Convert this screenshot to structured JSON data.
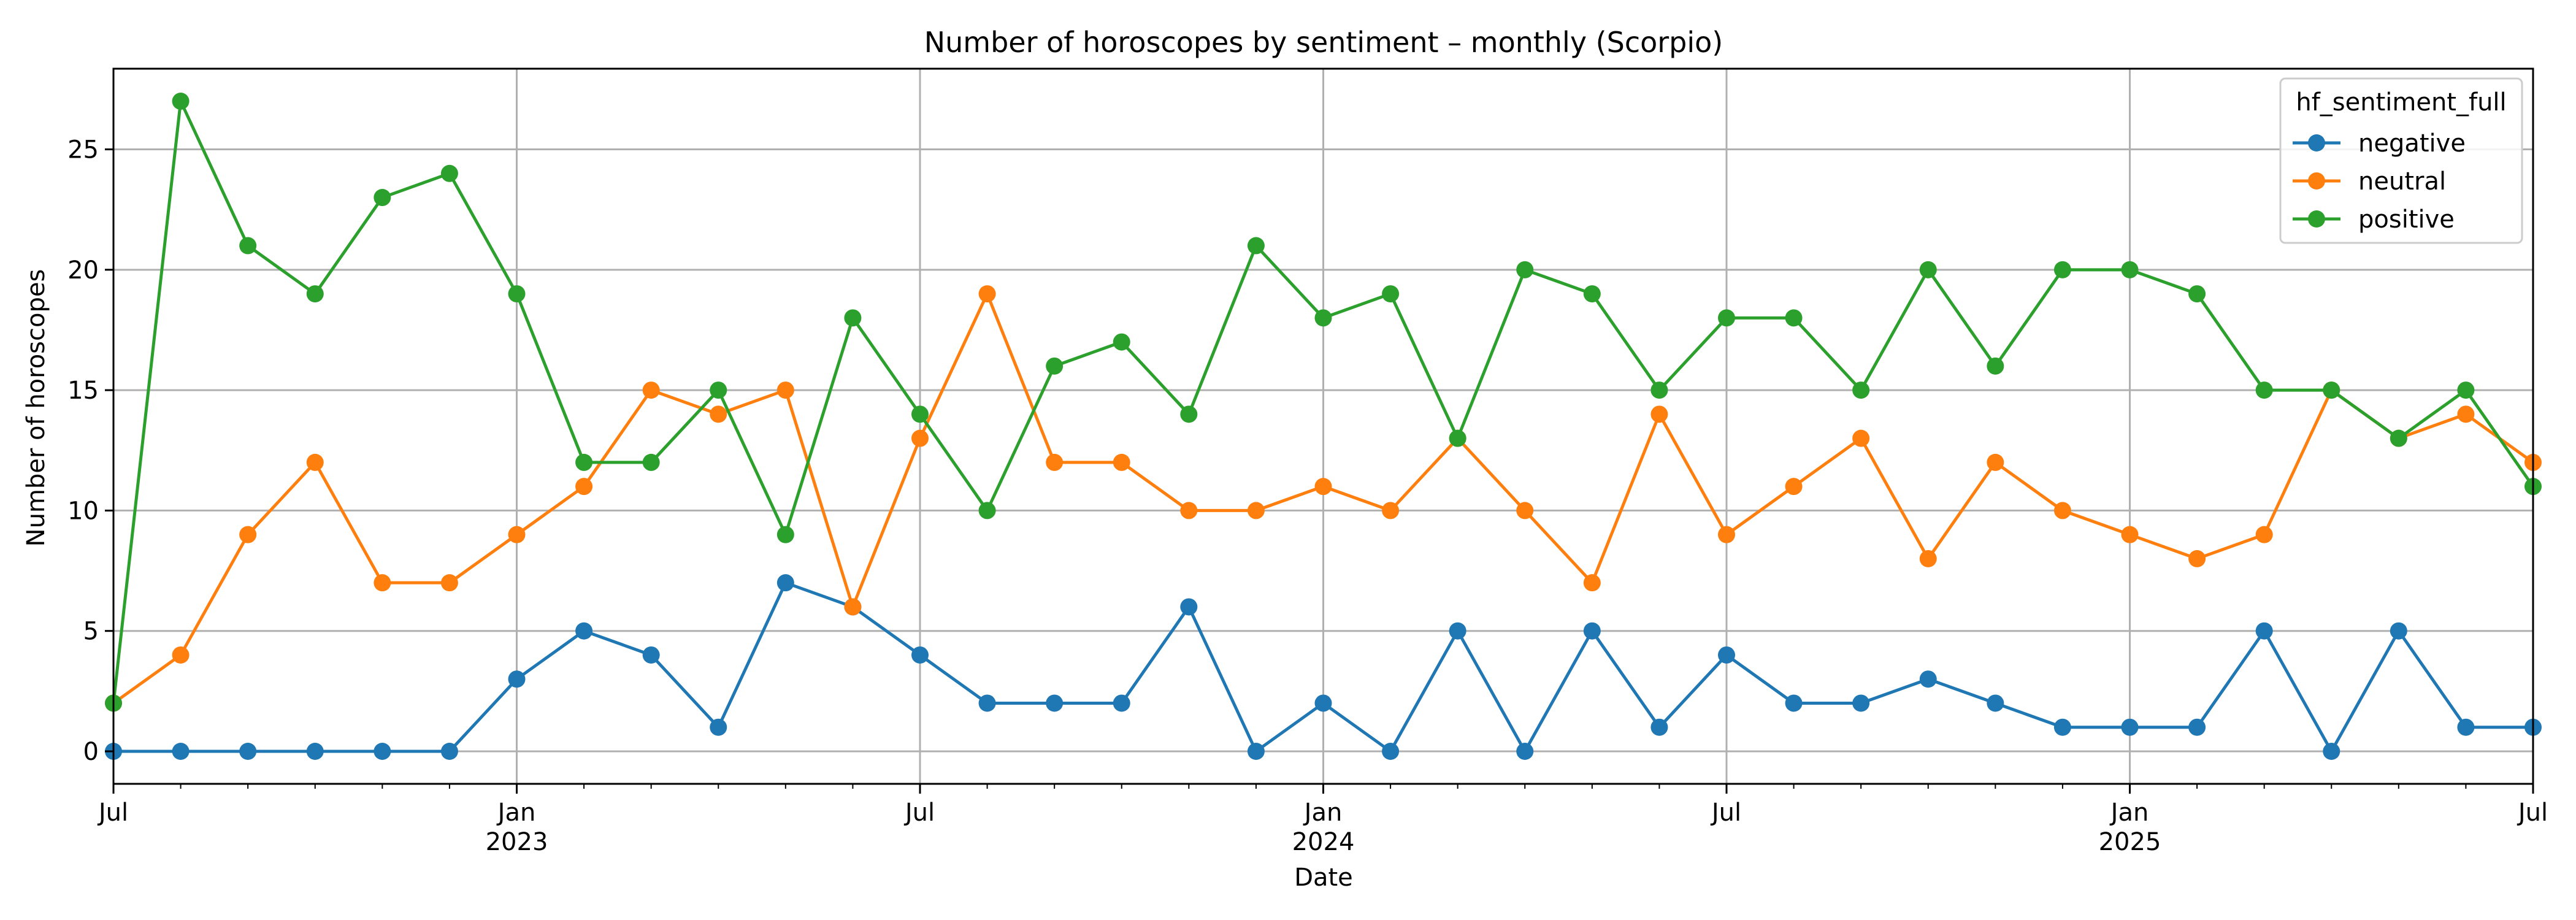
{
  "chart_data": {
    "type": "line",
    "title": "Number of horoscopes by sentiment – monthly (Scorpio)",
    "xlabel": "Date",
    "ylabel": "Number of horoscopes",
    "x": [
      "2022-07",
      "2022-08",
      "2022-09",
      "2022-10",
      "2022-11",
      "2022-12",
      "2023-01",
      "2023-02",
      "2023-03",
      "2023-04",
      "2023-05",
      "2023-06",
      "2023-07",
      "2023-08",
      "2023-09",
      "2023-10",
      "2023-11",
      "2023-12",
      "2024-01",
      "2024-02",
      "2024-03",
      "2024-04",
      "2024-05",
      "2024-06",
      "2024-07",
      "2024-08",
      "2024-09",
      "2024-10",
      "2024-11",
      "2024-12",
      "2025-01",
      "2025-02",
      "2025-03",
      "2025-04",
      "2025-05",
      "2025-06",
      "2025-07"
    ],
    "xlim": [
      "2022-07",
      "2025-07"
    ],
    "ylim": [
      -1.35,
      28.35
    ],
    "y_ticks": [
      0,
      5,
      10,
      15,
      20,
      25
    ],
    "x_ticks": [
      {
        "at": "2022-07",
        "label": "Jul",
        "year": ""
      },
      {
        "at": "2023-01",
        "label": "Jan",
        "year": "2023"
      },
      {
        "at": "2023-07",
        "label": "Jul",
        "year": ""
      },
      {
        "at": "2024-01",
        "label": "Jan",
        "year": "2024"
      },
      {
        "at": "2024-07",
        "label": "Jul",
        "year": ""
      },
      {
        "at": "2025-01",
        "label": "Jan",
        "year": "2025"
      },
      {
        "at": "2025-07",
        "label": "Jul",
        "year": ""
      }
    ],
    "grid": true,
    "legend": {
      "title": "hf_sentiment_full",
      "placement": "top-right"
    },
    "series": [
      {
        "name": "negative",
        "color": "#1f77b4",
        "values": [
          0,
          0,
          0,
          0,
          0,
          0,
          3,
          5,
          4,
          1,
          7,
          6,
          4,
          2,
          2,
          2,
          6,
          0,
          2,
          0,
          5,
          0,
          5,
          1,
          4,
          2,
          2,
          3,
          2,
          1,
          1,
          1,
          5,
          0,
          5,
          1,
          1
        ]
      },
      {
        "name": "neutral",
        "color": "#ff7f0e",
        "values": [
          2,
          4,
          9,
          12,
          7,
          7,
          9,
          11,
          15,
          14,
          15,
          6,
          13,
          19,
          12,
          12,
          10,
          10,
          11,
          10,
          13,
          10,
          7,
          14,
          9,
          11,
          13,
          8,
          12,
          10,
          9,
          8,
          9,
          15,
          13,
          14,
          12
        ]
      },
      {
        "name": "positive",
        "color": "#2ca02c",
        "values": [
          2,
          27,
          21,
          19,
          23,
          24,
          19,
          12,
          12,
          15,
          9,
          18,
          14,
          10,
          16,
          17,
          14,
          21,
          18,
          19,
          13,
          20,
          19,
          15,
          18,
          18,
          15,
          20,
          16,
          20,
          20,
          19,
          15,
          15,
          13,
          15,
          11
        ]
      }
    ]
  }
}
